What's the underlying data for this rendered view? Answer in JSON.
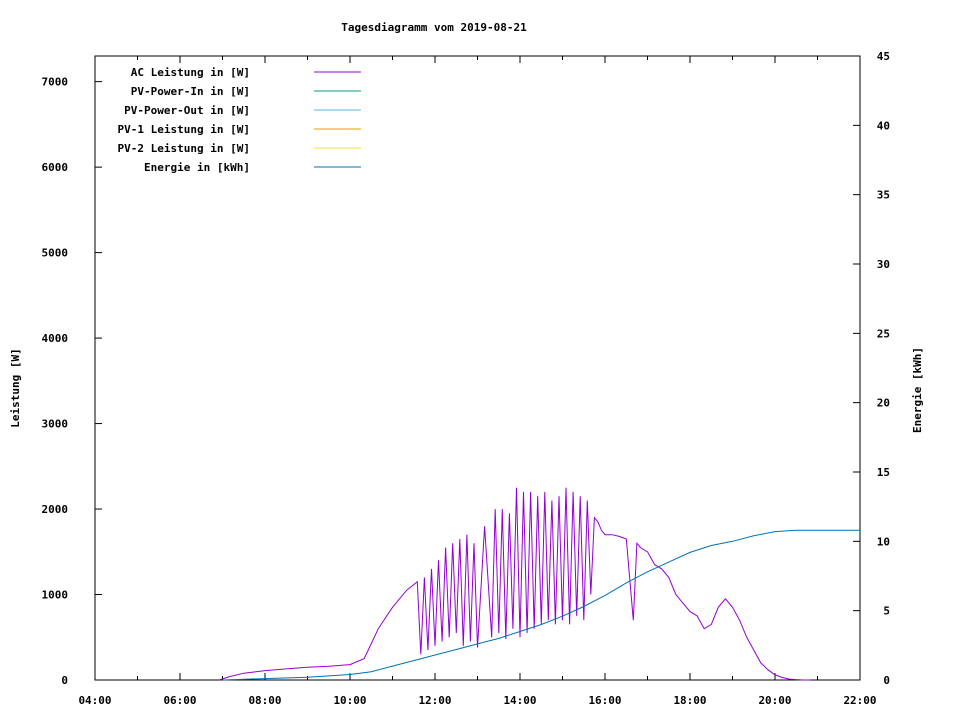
{
  "chart_data": {
    "type": "line",
    "title": "Tagesdiagramm vom 2019-08-21",
    "xlabel": "",
    "ylabel": "Leistung [W]",
    "y2label": "Energie [kWh]",
    "xlim": [
      "04:00",
      "22:00"
    ],
    "ylim": [
      0,
      7300
    ],
    "y2lim": [
      0,
      45
    ],
    "grid": false,
    "legend_position": "top-left",
    "x_ticks": [
      "04:00",
      "06:00",
      "08:00",
      "10:00",
      "12:00",
      "14:00",
      "16:00",
      "18:00",
      "20:00",
      "22:00"
    ],
    "y_ticks": [
      0,
      1000,
      2000,
      3000,
      4000,
      5000,
      6000,
      7000
    ],
    "y2_ticks": [
      0,
      5,
      10,
      15,
      20,
      25,
      30,
      35,
      40,
      45
    ],
    "series": [
      {
        "name": "AC Leistung in [W]",
        "axis": "y",
        "color": "#9400d3",
        "x": [
          "06:55",
          "07:10",
          "07:30",
          "08:00",
          "08:30",
          "09:00",
          "09:30",
          "10:00",
          "10:20",
          "10:40",
          "11:00",
          "11:20",
          "11:35",
          "11:40",
          "11:45",
          "11:50",
          "11:55",
          "12:00",
          "12:05",
          "12:10",
          "12:15",
          "12:20",
          "12:25",
          "12:30",
          "12:35",
          "12:40",
          "12:45",
          "12:50",
          "12:55",
          "13:00",
          "13:10",
          "13:20",
          "13:25",
          "13:30",
          "13:35",
          "13:40",
          "13:45",
          "13:50",
          "13:55",
          "14:00",
          "14:05",
          "14:10",
          "14:15",
          "14:20",
          "14:25",
          "14:30",
          "14:35",
          "14:40",
          "14:45",
          "14:50",
          "14:55",
          "15:00",
          "15:05",
          "15:10",
          "15:15",
          "15:20",
          "15:25",
          "15:30",
          "15:35",
          "15:40",
          "15:45",
          "15:50",
          "15:55",
          "16:00",
          "16:10",
          "16:20",
          "16:30",
          "16:40",
          "16:45",
          "16:50",
          "17:00",
          "17:10",
          "17:20",
          "17:30",
          "17:40",
          "17:50",
          "18:00",
          "18:10",
          "18:20",
          "18:30",
          "18:40",
          "18:50",
          "19:00",
          "19:10",
          "19:20",
          "19:30",
          "19:40",
          "19:50",
          "20:00",
          "20:10",
          "20:20",
          "20:30",
          "20:40",
          "20:50"
        ],
        "values": [
          0,
          40,
          80,
          110,
          130,
          150,
          160,
          180,
          250,
          600,
          850,
          1050,
          1150,
          300,
          1200,
          350,
          1300,
          400,
          1400,
          450,
          1550,
          500,
          1600,
          550,
          1650,
          400,
          1700,
          450,
          1600,
          380,
          1800,
          500,
          2000,
          550,
          2000,
          480,
          1950,
          600,
          2250,
          500,
          2200,
          550,
          2200,
          600,
          2150,
          650,
          2200,
          700,
          2100,
          650,
          2150,
          700,
          2250,
          650,
          2200,
          750,
          2150,
          700,
          2100,
          1000,
          1900,
          1850,
          1750,
          1700,
          1700,
          1680,
          1650,
          700,
          1600,
          1550,
          1500,
          1350,
          1300,
          1200,
          1000,
          900,
          800,
          750,
          600,
          650,
          850,
          950,
          850,
          700,
          500,
          350,
          200,
          120,
          60,
          30,
          10,
          5,
          0,
          0
        ]
      },
      {
        "name": "PV-Power-In in [W]",
        "axis": "y",
        "color": "#009e73",
        "x": [],
        "values": []
      },
      {
        "name": "PV-Power-Out in [W]",
        "axis": "y",
        "color": "#56b4e9",
        "x": [],
        "values": []
      },
      {
        "name": "PV-1 Leistung in [W]",
        "axis": "y",
        "color": "#e69f00",
        "x": [],
        "values": []
      },
      {
        "name": "PV-2 Leistung in [W]",
        "axis": "y",
        "color": "#f0e442",
        "x": [],
        "values": []
      },
      {
        "name": "Energie in [kWh]",
        "axis": "y2",
        "color": "#0072b2",
        "x": [
          "07:00",
          "08:00",
          "09:00",
          "10:00",
          "10:30",
          "11:00",
          "11:30",
          "12:00",
          "12:30",
          "13:00",
          "13:30",
          "14:00",
          "14:30",
          "15:00",
          "15:30",
          "16:00",
          "16:30",
          "17:00",
          "17:30",
          "18:00",
          "18:30",
          "19:00",
          "19:30",
          "20:00",
          "20:30",
          "21:00",
          "21:30",
          "22:00"
        ],
        "values": [
          0,
          0.1,
          0.2,
          0.4,
          0.6,
          1.0,
          1.4,
          1.8,
          2.2,
          2.6,
          3.0,
          3.5,
          4.0,
          4.6,
          5.3,
          6.1,
          7.0,
          7.8,
          8.5,
          9.2,
          9.7,
          10.0,
          10.4,
          10.7,
          10.8,
          10.8,
          10.8,
          10.8
        ]
      }
    ]
  }
}
